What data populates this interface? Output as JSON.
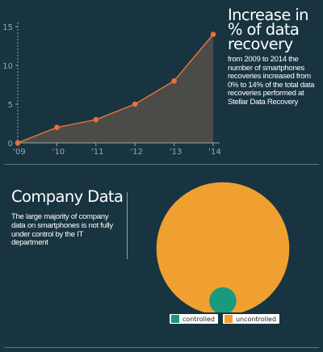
{
  "colors": {
    "background": "#173440",
    "line": "#e8703a",
    "area": "#4b4c47",
    "axis": "#9aa7ad",
    "controlled": "#1a9a7d",
    "uncontrolled": "#f0a030"
  },
  "increase": {
    "title": "Increase in % of data recovery",
    "description": "from 2009 to 2014 the number of smartphones recoveries increased from 0% to 14% of the total data recoveries performed at Stellar Data Recovery"
  },
  "company": {
    "title": "Company Data",
    "description": "The large majority of company data on smartphones is not fully under control by the IT department"
  },
  "chart_data": [
    {
      "type": "area",
      "x": [
        "'09",
        "'10",
        "'11",
        "'12",
        "'13",
        "'14"
      ],
      "values": [
        0,
        2,
        3,
        5,
        8,
        14
      ],
      "yticks": [
        0,
        5,
        10,
        15
      ],
      "ylim": [
        0,
        15
      ],
      "grid": false,
      "title": "",
      "xlabel": "",
      "ylabel": ""
    },
    {
      "type": "bubble",
      "series": [
        {
          "name": "controlled",
          "value": 4
        },
        {
          "name": "uncontrolled",
          "value": 96
        }
      ],
      "legend": "bottom"
    }
  ]
}
